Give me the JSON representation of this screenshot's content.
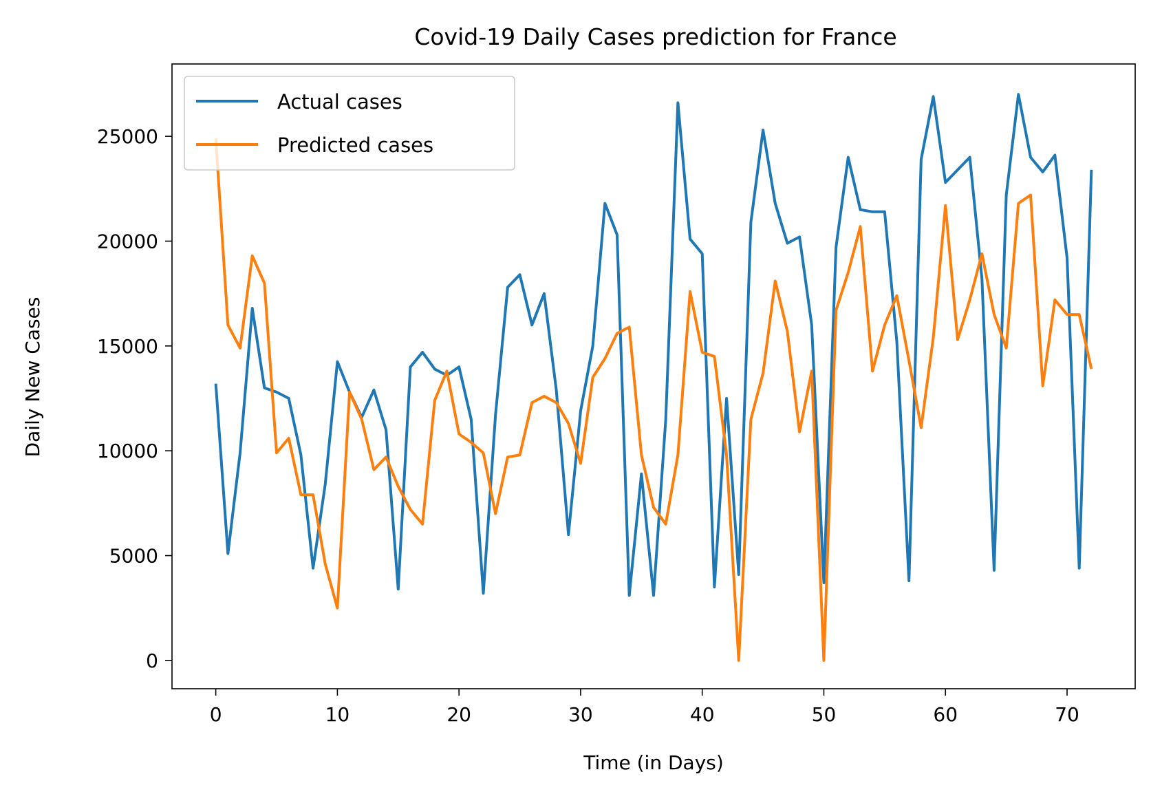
{
  "chart_data": {
    "type": "line",
    "title": "Covid-19 Daily Cases prediction for France",
    "xlabel": "Time (in Days)",
    "ylabel": "Daily New Cases",
    "xlim": [
      -3.6,
      75.6
    ],
    "ylim": [
      -1350,
      28450
    ],
    "xticks": [
      0,
      10,
      20,
      30,
      40,
      50,
      60,
      70
    ],
    "yticks": [
      0,
      5000,
      10000,
      15000,
      20000,
      25000
    ],
    "grid": false,
    "legend_position": "top-left",
    "x": [
      0,
      1,
      2,
      3,
      4,
      5,
      6,
      7,
      8,
      9,
      10,
      11,
      12,
      13,
      14,
      15,
      16,
      17,
      18,
      19,
      20,
      21,
      22,
      23,
      24,
      25,
      26,
      27,
      28,
      29,
      30,
      31,
      32,
      33,
      34,
      35,
      36,
      37,
      38,
      39,
      40,
      41,
      42,
      43,
      44,
      45,
      46,
      47,
      48,
      49,
      50,
      51,
      52,
      53,
      54,
      55,
      56,
      57,
      58,
      59,
      60,
      61,
      62,
      63,
      64,
      65,
      66,
      67,
      68,
      69,
      70,
      71,
      72
    ],
    "series": [
      {
        "name": "Actual cases",
        "color": "#1f77b4",
        "values": [
          13200,
          5100,
          9900,
          16800,
          13000,
          12800,
          12500,
          9800,
          4400,
          8400,
          14250,
          12800,
          11600,
          12900,
          11000,
          3400,
          14000,
          14700,
          13900,
          13600,
          14000,
          11500,
          3200,
          11700,
          17800,
          18400,
          16000,
          17500,
          12900,
          6000,
          11900,
          15000,
          21800,
          20300,
          3100,
          8900,
          3100,
          11500,
          26600,
          20100,
          19400,
          3500,
          12500,
          4100,
          20900,
          25300,
          21800,
          19900,
          20200,
          16000,
          3700,
          19700,
          24000,
          21500,
          21400,
          21400,
          15200,
          3800,
          23900,
          26900,
          22800,
          23400,
          24000,
          18200,
          4300,
          22200,
          27000,
          24000,
          23300,
          24100,
          19200,
          4400,
          23400
        ]
      },
      {
        "name": "Predicted cases",
        "color": "#ff7f0e",
        "values": [
          24900,
          16000,
          14900,
          19300,
          18000,
          9900,
          10600,
          7900,
          7900,
          4600,
          2500,
          12800,
          11500,
          9100,
          9700,
          8300,
          7200,
          6500,
          12400,
          13800,
          10800,
          10400,
          9900,
          7000,
          9700,
          9800,
          12300,
          12600,
          12300,
          11300,
          9400,
          13500,
          14400,
          15600,
          15900,
          9800,
          7300,
          6500,
          9800,
          17600,
          14700,
          14500,
          9800,
          0,
          11500,
          13700,
          18100,
          15700,
          10900,
          13800,
          0,
          16700,
          18500,
          20700,
          13800,
          16000,
          17400,
          14300,
          11100,
          15400,
          21700,
          15300,
          17200,
          19400,
          16500,
          14900,
          21800,
          22200,
          13100,
          17200,
          16500,
          16500,
          13900
        ]
      }
    ]
  }
}
